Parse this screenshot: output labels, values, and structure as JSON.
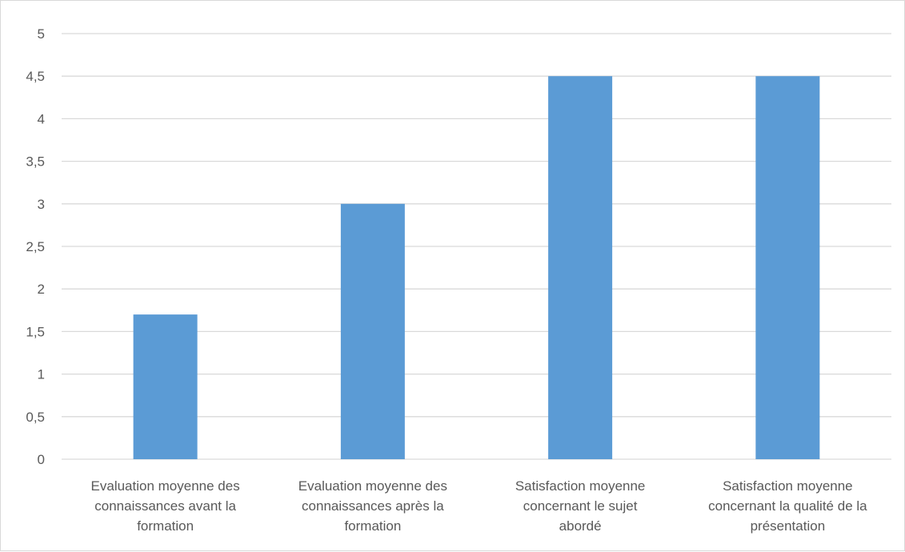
{
  "chart_data": {
    "type": "bar",
    "categories": [
      [
        "Evaluation moyenne des",
        "connaissances avant la",
        "formation"
      ],
      [
        "Evaluation moyenne des",
        "connaissances après la",
        "formation"
      ],
      [
        "Satisfaction moyenne",
        "concernant le sujet",
        "abordé"
      ],
      [
        "Satisfaction moyenne",
        "concernant la qualité de la",
        "présentation"
      ]
    ],
    "values": [
      1.7,
      3,
      4.5,
      4.5
    ],
    "yticks": [
      "0",
      "0,5",
      "1",
      "1,5",
      "2",
      "2,5",
      "3",
      "3,5",
      "4",
      "4,5",
      "5"
    ],
    "ylim": [
      0,
      5
    ],
    "grid": true,
    "bar_color": "#5b9bd5",
    "grid_color": "#d9d9d9",
    "text_color": "#595959"
  }
}
